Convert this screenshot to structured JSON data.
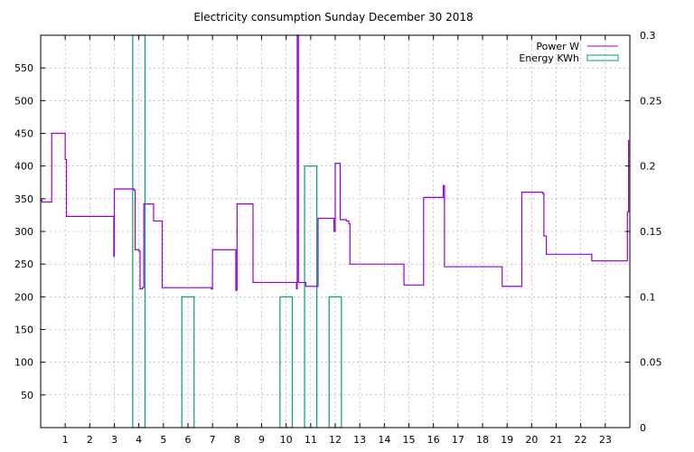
{
  "chart_data": {
    "type": "line",
    "title": "Electricity consumption Sunday December 30 2018",
    "xlim": [
      0,
      24
    ],
    "ylim": [
      0,
      600
    ],
    "y2lim": [
      0,
      0.3
    ],
    "grid": true,
    "legend_position": "top-right",
    "x_ticks": [
      1,
      2,
      3,
      4,
      5,
      6,
      7,
      8,
      9,
      10,
      11,
      12,
      13,
      14,
      15,
      16,
      17,
      18,
      19,
      20,
      21,
      22,
      23
    ],
    "y_ticks": [
      50,
      100,
      150,
      200,
      250,
      300,
      350,
      400,
      450,
      500,
      550
    ],
    "y2_ticks": [
      "0",
      "0.05",
      "0.1",
      "0.15",
      "0.2",
      "0.25",
      "0.3"
    ],
    "colors": {
      "power": "#9400d3",
      "energy": "#009e73"
    },
    "series": [
      {
        "name": "Power W",
        "axis": "y",
        "points": [
          [
            0,
            348
          ],
          [
            0.05,
            345
          ],
          [
            0.45,
            345
          ],
          [
            0.45,
            450
          ],
          [
            1.0,
            450
          ],
          [
            1.0,
            410
          ],
          [
            1.05,
            323
          ],
          [
            2.95,
            323
          ],
          [
            2.98,
            262
          ],
          [
            3.0,
            365
          ],
          [
            3.8,
            363
          ],
          [
            3.85,
            272
          ],
          [
            4.0,
            270
          ],
          [
            4.05,
            212
          ],
          [
            4.15,
            214
          ],
          [
            4.2,
            342
          ],
          [
            4.55,
            342
          ],
          [
            4.6,
            316
          ],
          [
            4.9,
            316
          ],
          [
            4.95,
            214
          ],
          [
            6.9,
            214
          ],
          [
            6.95,
            212
          ],
          [
            7.0,
            272
          ],
          [
            7.9,
            272
          ],
          [
            7.95,
            210
          ],
          [
            8.0,
            342
          ],
          [
            8.6,
            342
          ],
          [
            8.65,
            222
          ],
          [
            10.4,
            222
          ],
          [
            10.42,
            212
          ],
          [
            10.45,
            600
          ],
          [
            10.5,
            222
          ],
          [
            10.75,
            222
          ],
          [
            10.8,
            216
          ],
          [
            11.25,
            216
          ],
          [
            11.3,
            320
          ],
          [
            11.9,
            320
          ],
          [
            11.95,
            300
          ],
          [
            12.0,
            404
          ],
          [
            12.15,
            404
          ],
          [
            12.2,
            318
          ],
          [
            12.45,
            316
          ],
          [
            12.55,
            312
          ],
          [
            12.6,
            250
          ],
          [
            14.75,
            250
          ],
          [
            14.8,
            218
          ],
          [
            15.55,
            218
          ],
          [
            15.6,
            352
          ],
          [
            16.35,
            352
          ],
          [
            16.4,
            370
          ],
          [
            16.45,
            246
          ],
          [
            18.75,
            246
          ],
          [
            18.8,
            216
          ],
          [
            19.55,
            216
          ],
          [
            19.6,
            360
          ],
          [
            20.45,
            358
          ],
          [
            20.5,
            293
          ],
          [
            20.6,
            265
          ],
          [
            22.4,
            265
          ],
          [
            22.45,
            255
          ],
          [
            23.85,
            255
          ],
          [
            23.9,
            330
          ],
          [
            23.95,
            440
          ]
        ]
      },
      {
        "name": "Energy KWh",
        "axis": "y2",
        "style": "boxes",
        "boxes": [
          {
            "x0": 3.75,
            "x1": 4.25,
            "value": 0.3
          },
          {
            "x0": 5.75,
            "x1": 6.25,
            "value": 0.1
          },
          {
            "x0": 9.75,
            "x1": 10.25,
            "value": 0.1
          },
          {
            "x0": 10.75,
            "x1": 11.25,
            "value": 0.2
          },
          {
            "x0": 11.75,
            "x1": 12.25,
            "value": 0.1
          }
        ]
      }
    ]
  }
}
